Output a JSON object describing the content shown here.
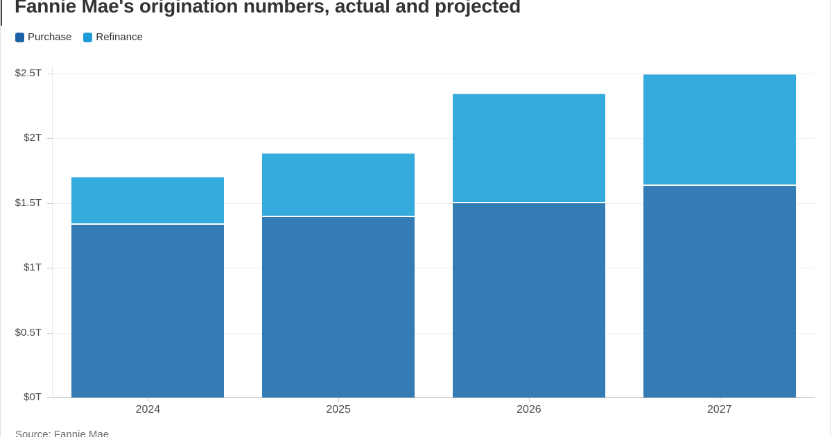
{
  "title": "Fannie Mae's origination numbers, actual and projected",
  "legend": [
    {
      "label": "Purchase",
      "color": "#1d61a6"
    },
    {
      "label": "Refinance",
      "color": "#1f9bd8"
    }
  ],
  "source": "Source: Fannie Mae",
  "chart_data": {
    "type": "bar",
    "stacked": true,
    "title": "Fannie Mae's origination numbers, actual and projected",
    "categories": [
      "2024",
      "2025",
      "2026",
      "2027"
    ],
    "series": [
      {
        "name": "Purchase",
        "color": "#337cb6",
        "values": [
          1.33,
          1.39,
          1.5,
          1.63
        ]
      },
      {
        "name": "Refinance",
        "color": "#35aadd",
        "values": [
          0.37,
          0.49,
          0.84,
          0.86
        ]
      }
    ],
    "totals": [
      1.7,
      1.88,
      2.34,
      2.49
    ],
    "unit_suffix": "T",
    "xlabel": "",
    "ylabel": "",
    "ylim": [
      0,
      2.5
    ],
    "ytick_step": 0.5,
    "yticks": [
      "$0T",
      "$0.5T",
      "$1T",
      "$1.5T",
      "$2T",
      "$2.5T"
    ],
    "grid": true,
    "legend_position": "top-left",
    "source": "Source: Fannie Mae"
  }
}
